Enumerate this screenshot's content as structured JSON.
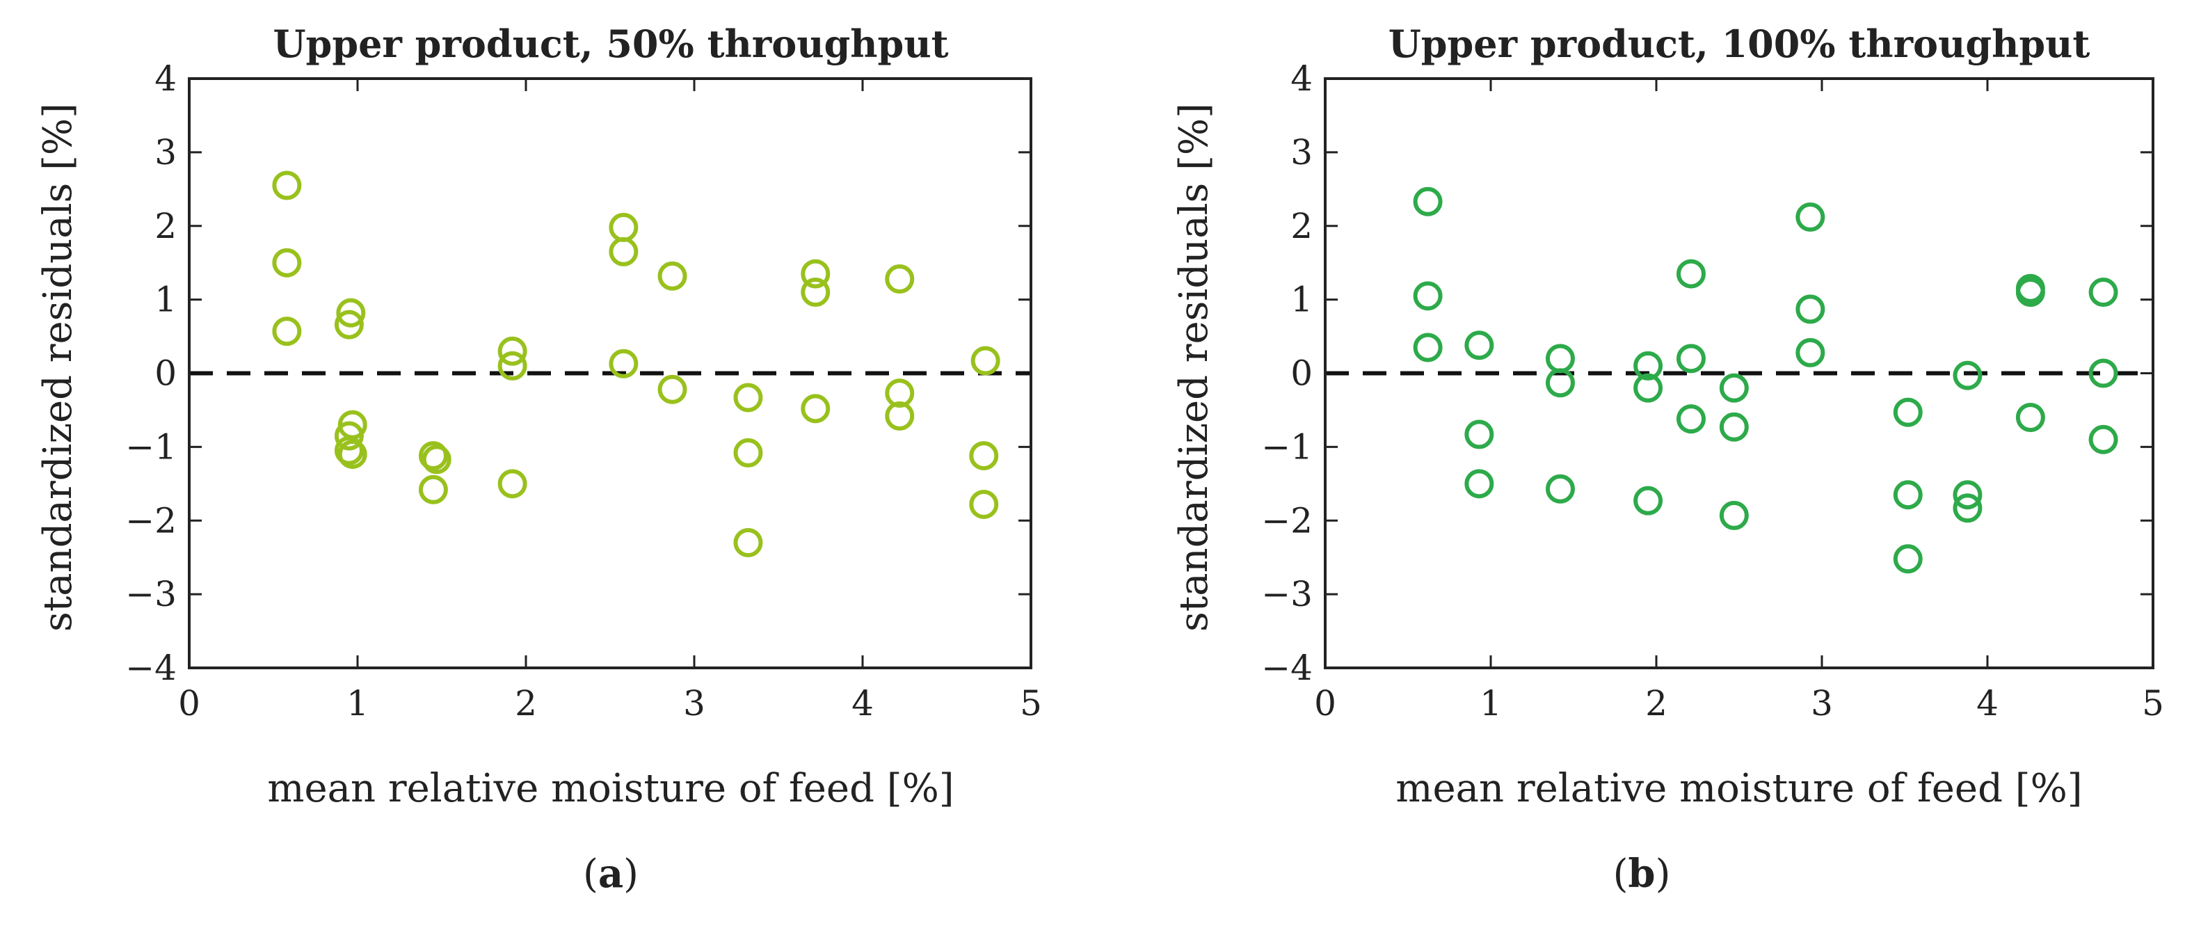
{
  "chart_data": [
    {
      "type": "scatter",
      "title": "Upper product, 50% throughput",
      "xlabel": "mean relative moisture of feed [%]",
      "ylabel": "standardized residuals [%]",
      "xlim": [
        0,
        5
      ],
      "ylim": [
        -4,
        4
      ],
      "xticks": [
        "0",
        "1",
        "2",
        "3",
        "4",
        "5"
      ],
      "yticks": [
        "4",
        "3",
        "2",
        "1",
        "0",
        "−1",
        "−2",
        "−3",
        "−4"
      ],
      "reference_line": {
        "y": 0,
        "style": "dashed"
      },
      "color": "#99c11d",
      "caption": {
        "open": "(",
        "letter": "a",
        "close": ")"
      },
      "points": [
        {
          "x": 0.58,
          "y": 2.55
        },
        {
          "x": 0.58,
          "y": 1.5
        },
        {
          "x": 0.58,
          "y": 0.57
        },
        {
          "x": 0.96,
          "y": 0.82
        },
        {
          "x": 0.95,
          "y": 0.66
        },
        {
          "x": 0.97,
          "y": -0.7
        },
        {
          "x": 0.95,
          "y": -0.85
        },
        {
          "x": 0.95,
          "y": -1.05
        },
        {
          "x": 0.97,
          "y": -1.1
        },
        {
          "x": 1.45,
          "y": -1.12
        },
        {
          "x": 1.47,
          "y": -1.17
        },
        {
          "x": 1.45,
          "y": -1.58
        },
        {
          "x": 1.92,
          "y": 0.3
        },
        {
          "x": 1.92,
          "y": 0.1
        },
        {
          "x": 1.92,
          "y": -1.5
        },
        {
          "x": 2.58,
          "y": 1.98
        },
        {
          "x": 2.58,
          "y": 1.65
        },
        {
          "x": 2.58,
          "y": 0.13
        },
        {
          "x": 2.87,
          "y": 1.32
        },
        {
          "x": 2.87,
          "y": -0.22
        },
        {
          "x": 3.32,
          "y": -0.33
        },
        {
          "x": 3.32,
          "y": -1.08
        },
        {
          "x": 3.32,
          "y": -2.3
        },
        {
          "x": 3.72,
          "y": 1.35
        },
        {
          "x": 3.72,
          "y": 1.1
        },
        {
          "x": 3.72,
          "y": -0.48
        },
        {
          "x": 4.22,
          "y": 1.28
        },
        {
          "x": 4.22,
          "y": -0.27
        },
        {
          "x": 4.22,
          "y": -0.58
        },
        {
          "x": 4.73,
          "y": 0.17
        },
        {
          "x": 4.72,
          "y": -1.12
        },
        {
          "x": 4.72,
          "y": -1.78
        }
      ]
    },
    {
      "type": "scatter",
      "title": "Upper product, 100% throughput",
      "xlabel": "mean relative moisture of feed [%]",
      "ylabel": "standardized residuals [%]",
      "xlim": [
        0,
        5
      ],
      "ylim": [
        -4,
        4
      ],
      "xticks": [
        "0",
        "1",
        "2",
        "3",
        "4",
        "5"
      ],
      "yticks": [
        "4",
        "3",
        "2",
        "1",
        "0",
        "−1",
        "−2",
        "−3",
        "−4"
      ],
      "reference_line": {
        "y": 0,
        "style": "dashed"
      },
      "color": "#2daa4a",
      "caption": {
        "open": "(",
        "letter": "b",
        "close": ")"
      },
      "points": [
        {
          "x": 0.62,
          "y": 2.33
        },
        {
          "x": 0.62,
          "y": 1.05
        },
        {
          "x": 0.62,
          "y": 0.35
        },
        {
          "x": 0.93,
          "y": 0.38
        },
        {
          "x": 0.93,
          "y": -0.83
        },
        {
          "x": 0.93,
          "y": -1.5
        },
        {
          "x": 1.42,
          "y": 0.2
        },
        {
          "x": 1.42,
          "y": -0.13
        },
        {
          "x": 1.42,
          "y": -1.57
        },
        {
          "x": 1.95,
          "y": 0.1
        },
        {
          "x": 1.95,
          "y": -0.2
        },
        {
          "x": 1.95,
          "y": -1.73
        },
        {
          "x": 2.21,
          "y": 1.35
        },
        {
          "x": 2.21,
          "y": 0.2
        },
        {
          "x": 2.21,
          "y": -0.62
        },
        {
          "x": 2.47,
          "y": -0.2
        },
        {
          "x": 2.47,
          "y": -0.73
        },
        {
          "x": 2.47,
          "y": -1.93
        },
        {
          "x": 2.93,
          "y": 2.12
        },
        {
          "x": 2.93,
          "y": 0.87
        },
        {
          "x": 2.93,
          "y": 0.28
        },
        {
          "x": 3.52,
          "y": -0.53
        },
        {
          "x": 3.52,
          "y": -1.65
        },
        {
          "x": 3.52,
          "y": -2.52
        },
        {
          "x": 3.88,
          "y": -0.03
        },
        {
          "x": 3.88,
          "y": -1.65
        },
        {
          "x": 3.88,
          "y": -1.83
        },
        {
          "x": 4.26,
          "y": 1.15
        },
        {
          "x": 4.26,
          "y": 1.1
        },
        {
          "x": 4.26,
          "y": -0.6
        },
        {
          "x": 4.7,
          "y": 1.1
        },
        {
          "x": 4.7,
          "y": 0.0
        },
        {
          "x": 4.7,
          "y": -0.9
        }
      ]
    }
  ]
}
